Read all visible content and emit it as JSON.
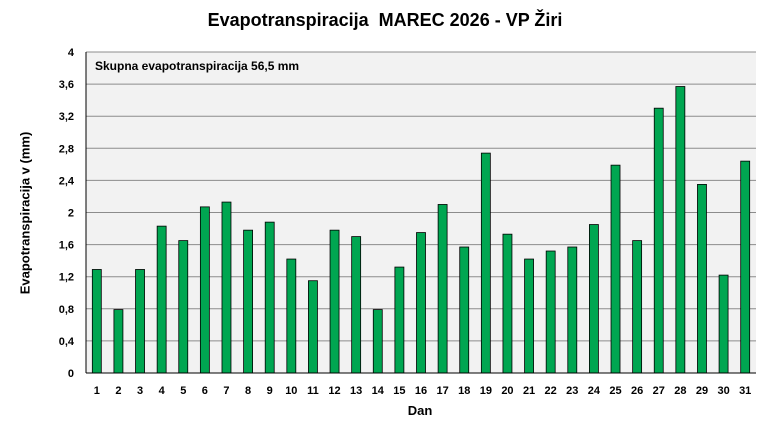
{
  "chart_data": {
    "type": "bar",
    "title": "Evapotranspiracija  MAREC 2026 - VP Žiri",
    "xlabel": "Dan",
    "ylabel": "Evapotranspiracija v  (mm)",
    "annotation": "Skupna evapotranspiracija  56,5 mm",
    "categories": [
      "1",
      "2",
      "3",
      "4",
      "5",
      "6",
      "7",
      "8",
      "9",
      "10",
      "11",
      "12",
      "13",
      "14",
      "15",
      "16",
      "17",
      "18",
      "19",
      "20",
      "21",
      "22",
      "23",
      "24",
      "25",
      "26",
      "27",
      "28",
      "29",
      "30",
      "31"
    ],
    "values": [
      1.29,
      0.79,
      1.29,
      1.83,
      1.65,
      2.07,
      2.13,
      1.78,
      1.88,
      1.42,
      1.15,
      1.78,
      1.7,
      0.79,
      1.32,
      1.75,
      2.1,
      1.57,
      2.74,
      1.73,
      1.42,
      1.52,
      1.57,
      1.85,
      2.59,
      1.65,
      3.3,
      3.57,
      2.35,
      1.22,
      2.64
    ],
    "ylim": [
      0,
      4
    ],
    "yticks": [
      "0",
      "0,4",
      "0,8",
      "1,2",
      "1,6",
      "2",
      "2,4",
      "2,8",
      "3,2",
      "3,6",
      "4"
    ],
    "grid": true,
    "bar_color": "#00A651",
    "plot_background": "#F2F2F2"
  }
}
